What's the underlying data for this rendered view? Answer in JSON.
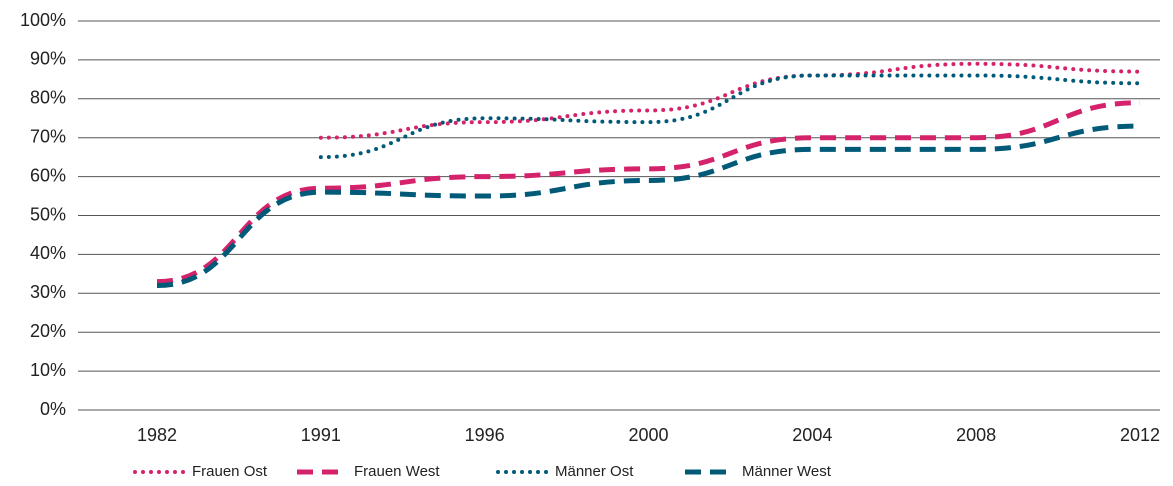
{
  "chart_data": {
    "type": "line",
    "categories": [
      "1982",
      "1991",
      "1996",
      "2000",
      "2004",
      "2008",
      "2012"
    ],
    "series": [
      {
        "name": "Frauen Ost",
        "color": "#d4226b",
        "style": "dotted",
        "values": [
          null,
          70,
          74,
          77,
          86,
          89,
          87
        ]
      },
      {
        "name": "Frauen West",
        "color": "#d4226b",
        "style": "dashed",
        "values": [
          33,
          57,
          60,
          62,
          70,
          70,
          79
        ]
      },
      {
        "name": "Männer Ost",
        "color": "#005a78",
        "style": "dotted",
        "values": [
          null,
          65,
          75,
          74,
          86,
          86,
          84
        ]
      },
      {
        "name": "Männer West",
        "color": "#005a78",
        "style": "dashed",
        "values": [
          32,
          56,
          55,
          59,
          67,
          67,
          73
        ]
      }
    ],
    "ylim": [
      0,
      100
    ],
    "yticks": [
      {
        "value": 0,
        "label": "0%"
      },
      {
        "value": 10,
        "label": "10%"
      },
      {
        "value": 20,
        "label": "20%"
      },
      {
        "value": 30,
        "label": "30%"
      },
      {
        "value": 40,
        "label": "40%"
      },
      {
        "value": 50,
        "label": "50%"
      },
      {
        "value": 60,
        "label": "60%"
      },
      {
        "value": 70,
        "label": "70%"
      },
      {
        "value": 80,
        "label": "80%"
      },
      {
        "value": 90,
        "label": "90%"
      },
      {
        "value": 100,
        "label": "100%"
      }
    ],
    "grid": true
  }
}
